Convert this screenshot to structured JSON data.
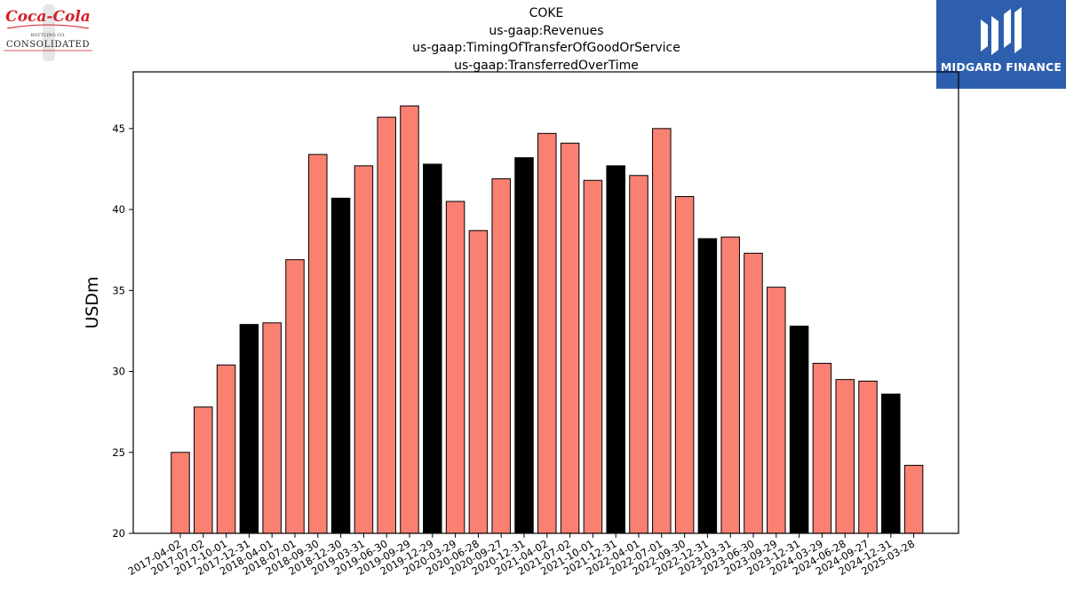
{
  "header": {
    "title_lines": [
      "COKE",
      "us-gaap:Revenues",
      "us-gaap:TimingOfTransferOfGoodOrService",
      "us-gaap:TransferredOverTime"
    ]
  },
  "logos": {
    "left_company": "Coca-Cola Consolidated",
    "left_brand": "Coca-Cola",
    "left_subline": "BOTTLING CO.",
    "left_name": "CONSOLIDATED",
    "right_brand": "MIDGARD FINANCE"
  },
  "colors": {
    "bar_default": "#fa8072",
    "bar_highlight": "#000000",
    "logo_right_bg": "#2d5fae",
    "coke_red": "#d4202a"
  },
  "chart_data": {
    "type": "bar",
    "ylabel": "USDm",
    "xlabel": "",
    "ylim": [
      20,
      48.5
    ],
    "yticks": [
      20,
      25,
      30,
      35,
      40,
      45
    ],
    "grid": false,
    "categories": [
      "2017-04-02",
      "2017-07-02",
      "2017-10-01",
      "2017-12-31",
      "2018-04-01",
      "2018-07-01",
      "2018-09-30",
      "2018-12-30",
      "2019-03-31",
      "2019-06-30",
      "2019-09-29",
      "2019-12-29",
      "2020-03-29",
      "2020-06-28",
      "2020-09-27",
      "2020-12-31",
      "2021-04-02",
      "2021-07-02",
      "2021-10-01",
      "2021-12-31",
      "2022-04-01",
      "2022-07-01",
      "2022-09-30",
      "2022-12-31",
      "2023-03-31",
      "2023-06-30",
      "2023-09-29",
      "2023-12-31",
      "2024-03-29",
      "2024-06-28",
      "2024-09-27",
      "2024-12-31",
      "2025-03-28"
    ],
    "values": [
      25.0,
      27.8,
      30.4,
      32.9,
      33.0,
      36.9,
      43.4,
      40.7,
      42.7,
      45.7,
      46.4,
      42.8,
      40.5,
      38.7,
      41.9,
      43.2,
      44.7,
      44.1,
      41.8,
      42.7,
      42.1,
      45.0,
      40.8,
      38.2,
      38.3,
      37.3,
      35.2,
      32.8,
      30.5,
      29.5,
      29.4,
      28.6,
      24.2
    ],
    "highlight": [
      false,
      false,
      false,
      true,
      false,
      false,
      false,
      true,
      false,
      false,
      false,
      true,
      false,
      false,
      false,
      true,
      false,
      false,
      false,
      true,
      false,
      false,
      false,
      true,
      false,
      false,
      false,
      true,
      false,
      false,
      false,
      true,
      false
    ]
  }
}
